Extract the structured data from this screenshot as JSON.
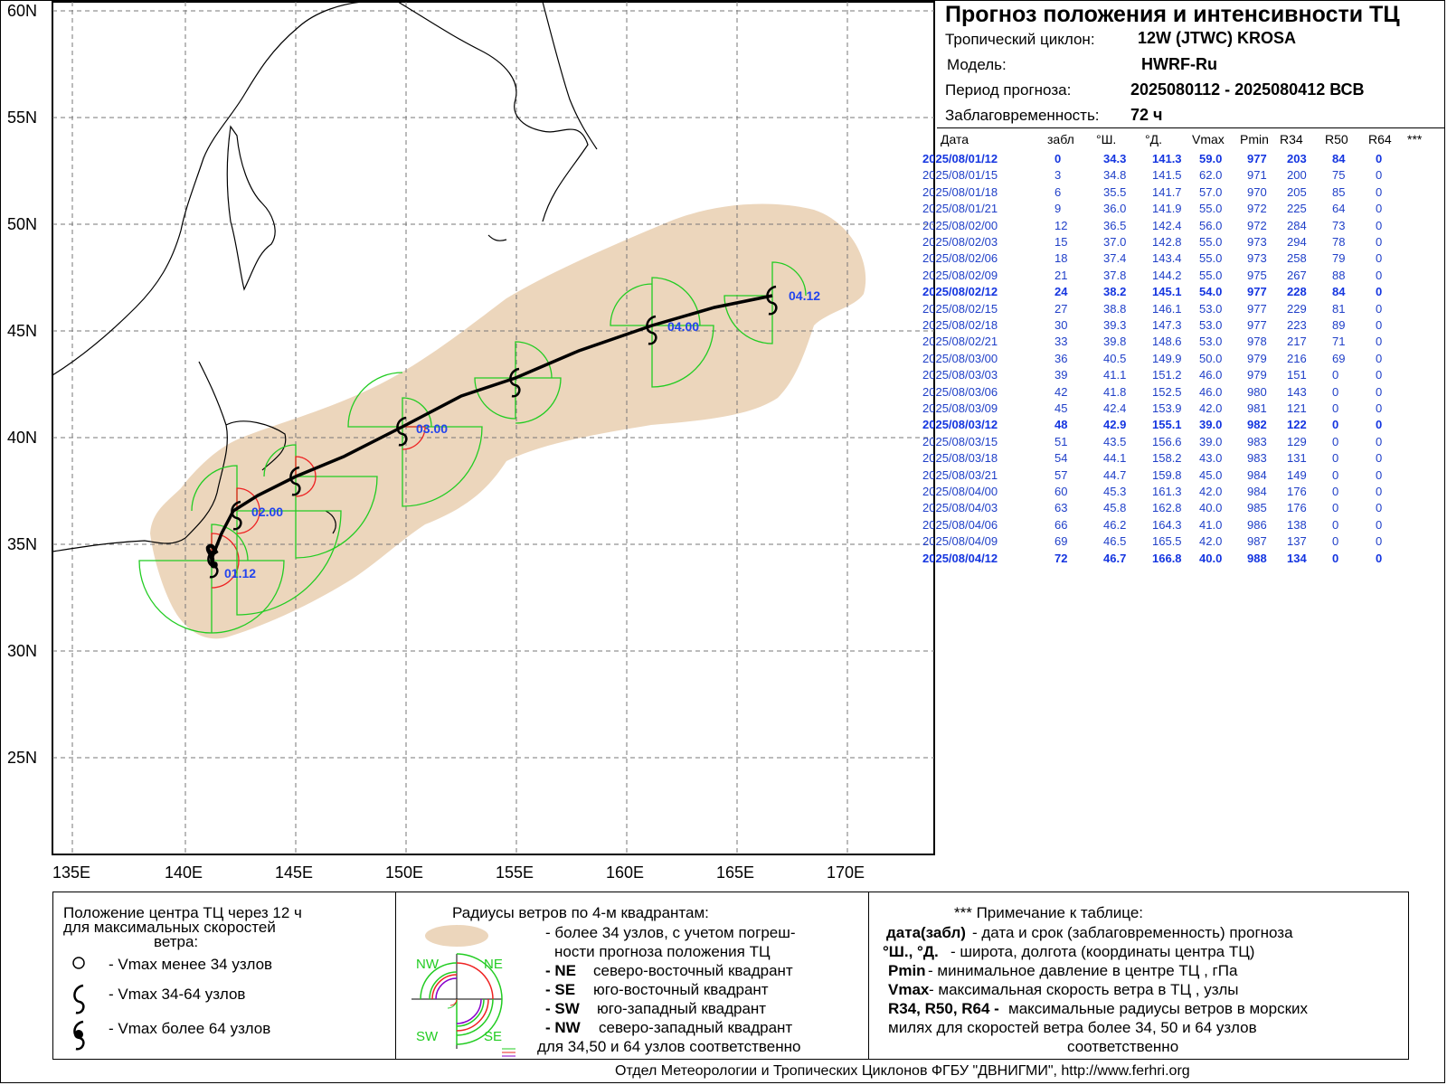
{
  "info": {
    "title": "Прогноз положения и интенсивности ТЦ",
    "cyclone_label": "Тропический циклон:",
    "cyclone_value": "12W (JTWC)  KROSA",
    "model_label": "Модель:",
    "model_value": "HWRF-Ru",
    "period_label": "Период прогноза:",
    "period_value": "2025080112 - 2025080412 ВСВ",
    "lead_label": "Заблаговременность:",
    "lead_value": "72 ч"
  },
  "table": {
    "headers": [
      "Дата",
      "забл",
      "°Ш.",
      "°Д.",
      "Vmax",
      "Pmin",
      "R34",
      "R50",
      "R64",
      "***"
    ],
    "rows": [
      {
        "date": "2025/08/01/12",
        "lead": "0",
        "lat": "34.3",
        "lon": "141.3",
        "vmax": "59.0",
        "pmin": "977",
        "r34": "203",
        "r50": "84",
        "r64": "0",
        "bold": true
      },
      {
        "date": "2025/08/01/15",
        "lead": "3",
        "lat": "34.8",
        "lon": "141.5",
        "vmax": "62.0",
        "pmin": "971",
        "r34": "200",
        "r50": "75",
        "r64": "0",
        "bold": false
      },
      {
        "date": "2025/08/01/18",
        "lead": "6",
        "lat": "35.5",
        "lon": "141.7",
        "vmax": "57.0",
        "pmin": "970",
        "r34": "205",
        "r50": "85",
        "r64": "0",
        "bold": false
      },
      {
        "date": "2025/08/01/21",
        "lead": "9",
        "lat": "36.0",
        "lon": "141.9",
        "vmax": "55.0",
        "pmin": "972",
        "r34": "225",
        "r50": "64",
        "r64": "0",
        "bold": false
      },
      {
        "date": "2025/08/02/00",
        "lead": "12",
        "lat": "36.5",
        "lon": "142.4",
        "vmax": "56.0",
        "pmin": "972",
        "r34": "284",
        "r50": "73",
        "r64": "0",
        "bold": false
      },
      {
        "date": "2025/08/02/03",
        "lead": "15",
        "lat": "37.0",
        "lon": "142.8",
        "vmax": "55.0",
        "pmin": "973",
        "r34": "294",
        "r50": "78",
        "r64": "0",
        "bold": false
      },
      {
        "date": "2025/08/02/06",
        "lead": "18",
        "lat": "37.4",
        "lon": "143.4",
        "vmax": "55.0",
        "pmin": "973",
        "r34": "258",
        "r50": "79",
        "r64": "0",
        "bold": false
      },
      {
        "date": "2025/08/02/09",
        "lead": "21",
        "lat": "37.8",
        "lon": "144.2",
        "vmax": "55.0",
        "pmin": "975",
        "r34": "267",
        "r50": "88",
        "r64": "0",
        "bold": false
      },
      {
        "date": "2025/08/02/12",
        "lead": "24",
        "lat": "38.2",
        "lon": "145.1",
        "vmax": "54.0",
        "pmin": "977",
        "r34": "228",
        "r50": "84",
        "r64": "0",
        "bold": true
      },
      {
        "date": "2025/08/02/15",
        "lead": "27",
        "lat": "38.8",
        "lon": "146.1",
        "vmax": "53.0",
        "pmin": "977",
        "r34": "229",
        "r50": "81",
        "r64": "0",
        "bold": false
      },
      {
        "date": "2025/08/02/18",
        "lead": "30",
        "lat": "39.3",
        "lon": "147.3",
        "vmax": "53.0",
        "pmin": "977",
        "r34": "223",
        "r50": "89",
        "r64": "0",
        "bold": false
      },
      {
        "date": "2025/08/02/21",
        "lead": "33",
        "lat": "39.8",
        "lon": "148.6",
        "vmax": "53.0",
        "pmin": "978",
        "r34": "217",
        "r50": "71",
        "r64": "0",
        "bold": false
      },
      {
        "date": "2025/08/03/00",
        "lead": "36",
        "lat": "40.5",
        "lon": "149.9",
        "vmax": "50.0",
        "pmin": "979",
        "r34": "216",
        "r50": "69",
        "r64": "0",
        "bold": false
      },
      {
        "date": "2025/08/03/03",
        "lead": "39",
        "lat": "41.1",
        "lon": "151.2",
        "vmax": "46.0",
        "pmin": "979",
        "r34": "151",
        "r50": "0",
        "r64": "0",
        "bold": false
      },
      {
        "date": "2025/08/03/06",
        "lead": "42",
        "lat": "41.8",
        "lon": "152.5",
        "vmax": "46.0",
        "pmin": "980",
        "r34": "143",
        "r50": "0",
        "r64": "0",
        "bold": false
      },
      {
        "date": "2025/08/03/09",
        "lead": "45",
        "lat": "42.4",
        "lon": "153.9",
        "vmax": "42.0",
        "pmin": "981",
        "r34": "121",
        "r50": "0",
        "r64": "0",
        "bold": false
      },
      {
        "date": "2025/08/03/12",
        "lead": "48",
        "lat": "42.9",
        "lon": "155.1",
        "vmax": "39.0",
        "pmin": "982",
        "r34": "122",
        "r50": "0",
        "r64": "0",
        "bold": true
      },
      {
        "date": "2025/08/03/15",
        "lead": "51",
        "lat": "43.5",
        "lon": "156.6",
        "vmax": "39.0",
        "pmin": "983",
        "r34": "129",
        "r50": "0",
        "r64": "0",
        "bold": false
      },
      {
        "date": "2025/08/03/18",
        "lead": "54",
        "lat": "44.1",
        "lon": "158.2",
        "vmax": "43.0",
        "pmin": "983",
        "r34": "131",
        "r50": "0",
        "r64": "0",
        "bold": false
      },
      {
        "date": "2025/08/03/21",
        "lead": "57",
        "lat": "44.7",
        "lon": "159.8",
        "vmax": "45.0",
        "pmin": "984",
        "r34": "149",
        "r50": "0",
        "r64": "0",
        "bold": false
      },
      {
        "date": "2025/08/04/00",
        "lead": "60",
        "lat": "45.3",
        "lon": "161.3",
        "vmax": "42.0",
        "pmin": "984",
        "r34": "176",
        "r50": "0",
        "r64": "0",
        "bold": false
      },
      {
        "date": "2025/08/04/03",
        "lead": "63",
        "lat": "45.8",
        "lon": "162.8",
        "vmax": "40.0",
        "pmin": "985",
        "r34": "176",
        "r50": "0",
        "r64": "0",
        "bold": false
      },
      {
        "date": "2025/08/04/06",
        "lead": "66",
        "lat": "46.2",
        "lon": "164.3",
        "vmax": "41.0",
        "pmin": "986",
        "r34": "138",
        "r50": "0",
        "r64": "0",
        "bold": false
      },
      {
        "date": "2025/08/04/09",
        "lead": "69",
        "lat": "46.5",
        "lon": "165.5",
        "vmax": "42.0",
        "pmin": "987",
        "r34": "137",
        "r50": "0",
        "r64": "0",
        "bold": false
      },
      {
        "date": "2025/08/04/12",
        "lead": "72",
        "lat": "46.7",
        "lon": "166.8",
        "vmax": "40.0",
        "pmin": "988",
        "r34": "134",
        "r50": "0",
        "r64": "0",
        "bold": true
      }
    ]
  },
  "map": {
    "lat_labels": [
      "60N",
      "55N",
      "50N",
      "45N",
      "40N",
      "35N",
      "30N",
      "25N"
    ],
    "lon_labels": [
      "135E",
      "140E",
      "145E",
      "150E",
      "155E",
      "160E",
      "165E",
      "170E"
    ],
    "track_labels": [
      "01.12",
      "02.00",
      "03.00",
      "04.00",
      "04.12"
    ],
    "colors": {
      "cone": "#ecd6bc",
      "r34": "#22cc22",
      "r50": "#ee2222",
      "track": "#000000",
      "labels": "#2244ee"
    }
  },
  "legend": {
    "left": {
      "title_line1": "Положение центра ТЦ через 12 ч",
      "title_line2": "для максимальных скоростей",
      "title_line3": "ветра:",
      "item1": "- Vmax   менее 34 узлов",
      "item2": "- Vmax   34-64 узлов",
      "item3": "- Vmax   более 64 узлов"
    },
    "middle": {
      "title": "Радиусы ветров по 4-м квадрантам:",
      "cone_line1": "- более 34 узлов, с учетом погреш-",
      "cone_line2": "ности прогноза положения ТЦ",
      "ne_key": "- NE",
      "ne_text": "северо-восточный квадрант",
      "se_key": "- SE",
      "se_text": "юго-восточный квадрант",
      "sw_key": "- SW",
      "sw_text": "юго-западный квадрант",
      "nw_key": "- NW",
      "nw_text": "северо-западный квадрант",
      "last_line": "для 34,50 и 64 узлов соответственно",
      "q_nw": "NW",
      "q_ne": "NE",
      "q_sw": "SW",
      "q_se": "SE"
    },
    "right": {
      "title": "*** Примечание к таблице:",
      "k1": "дата(забл)",
      "t1": " - дата и срок (заблаговременность) прогноза",
      "k2": "°Ш., °Д.",
      "t2": " - широта, долгота   (координаты центра ТЦ)",
      "k3": "Pmin",
      "t3": " - минимальное давление в центре ТЦ , гПа",
      "k4": "Vmax",
      "t4": "  -  максимальная скорость ветра в ТЦ , узлы",
      "k5": "R34, R50, R64 -",
      "t5": " максимальные радиусы ветров в морских",
      "line6": "милях для скоростей ветра более 34, 50 и 64 узлов",
      "line7": "соответственно"
    }
  },
  "footer": "Отдел Метеорологии и Тропических Циклонов ФГБУ \"ДВНИГМИ\",  http://www.ferhri.org"
}
